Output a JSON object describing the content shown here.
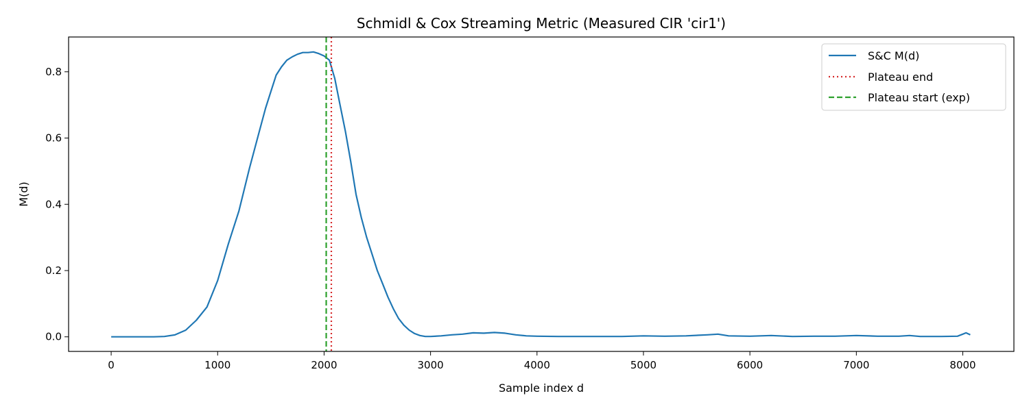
{
  "chart_data": {
    "type": "line",
    "title": "Schmidl & Cox Streaming Metric (Measured CIR 'cir1')",
    "xlabel": "Sample index d",
    "ylabel": "M(d)",
    "xlim": [
      -400,
      8480
    ],
    "ylim": [
      -0.044,
      0.905
    ],
    "xticks": [
      0,
      1000,
      2000,
      3000,
      4000,
      5000,
      6000,
      7000,
      8000
    ],
    "yticks": [
      0.0,
      0.2,
      0.4,
      0.6,
      0.8
    ],
    "grid": false,
    "legend_position": "top-right",
    "series": [
      {
        "name": "S&C M(d)",
        "color": "#1f77b4",
        "style": "solid",
        "x": [
          0,
          200,
          400,
          500,
          600,
          700,
          800,
          900,
          1000,
          1100,
          1200,
          1300,
          1400,
          1450,
          1500,
          1550,
          1600,
          1650,
          1700,
          1750,
          1800,
          1850,
          1900,
          1950,
          2000,
          2050,
          2100,
          2150,
          2200,
          2250,
          2300,
          2350,
          2400,
          2450,
          2500,
          2550,
          2600,
          2650,
          2700,
          2750,
          2800,
          2850,
          2900,
          2950,
          3000,
          3100,
          3200,
          3300,
          3400,
          3500,
          3600,
          3700,
          3800,
          3900,
          4000,
          4200,
          4400,
          4600,
          4800,
          5000,
          5200,
          5400,
          5600,
          5700,
          5800,
          6000,
          6200,
          6400,
          6600,
          6800,
          7000,
          7200,
          7400,
          7500,
          7600,
          7800,
          7950,
          8000,
          8030,
          8070
        ],
        "y": [
          0.0,
          0.0,
          0.0,
          0.001,
          0.006,
          0.02,
          0.05,
          0.09,
          0.17,
          0.28,
          0.38,
          0.51,
          0.63,
          0.69,
          0.74,
          0.79,
          0.815,
          0.835,
          0.845,
          0.853,
          0.858,
          0.858,
          0.86,
          0.855,
          0.848,
          0.835,
          0.78,
          0.7,
          0.62,
          0.53,
          0.43,
          0.36,
          0.3,
          0.25,
          0.2,
          0.16,
          0.12,
          0.085,
          0.055,
          0.035,
          0.02,
          0.01,
          0.004,
          0.001,
          0.001,
          0.003,
          0.006,
          0.008,
          0.012,
          0.011,
          0.013,
          0.011,
          0.006,
          0.003,
          0.002,
          0.001,
          0.001,
          0.001,
          0.001,
          0.003,
          0.002,
          0.003,
          0.006,
          0.008,
          0.003,
          0.002,
          0.004,
          0.001,
          0.002,
          0.002,
          0.004,
          0.002,
          0.002,
          0.004,
          0.001,
          0.001,
          0.002,
          0.008,
          0.012,
          0.006
        ]
      },
      {
        "name": "Plateau end",
        "color": "#d62728",
        "style": "dotted",
        "vline_x": 2068
      },
      {
        "name": "Plateau start (exp)",
        "color": "#2ca02c",
        "style": "dashed",
        "vline_x": 2020
      }
    ]
  }
}
